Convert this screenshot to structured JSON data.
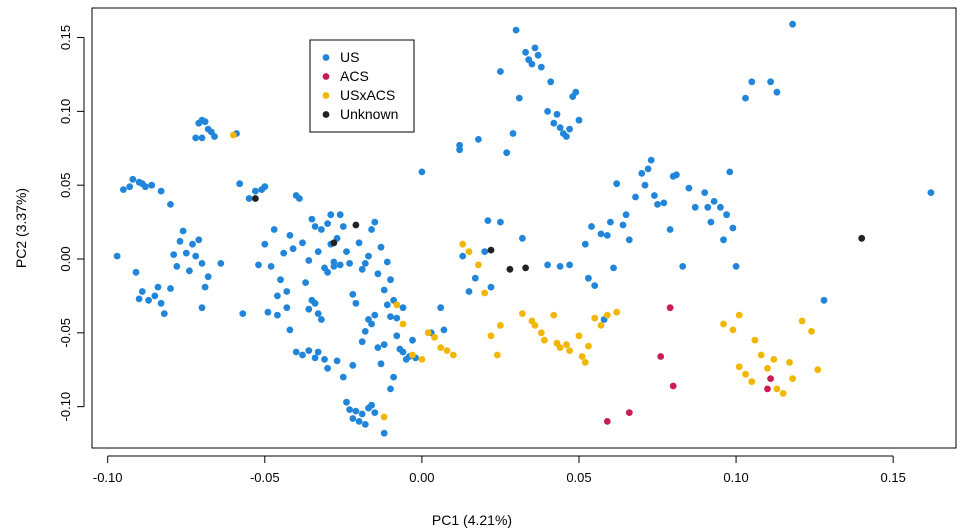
{
  "chart_data": {
    "type": "scatter",
    "xlabel": "PC1  (4.21%)",
    "ylabel": "PC2  (3.37%)",
    "xlim": [
      -0.105,
      0.17
    ],
    "ylim": [
      -0.128,
      0.17
    ],
    "xticks": [
      -0.1,
      -0.05,
      0.0,
      0.05,
      0.1,
      0.15
    ],
    "xtick_labels": [
      "-0.10",
      "-0.05",
      "0.00",
      "0.05",
      "0.10",
      "0.15"
    ],
    "yticks": [
      -0.1,
      -0.05,
      0.0,
      0.05,
      0.1,
      0.15
    ],
    "ytick_labels": [
      "-0.10",
      "-0.05",
      "0.00",
      "0.05",
      "0.10",
      "0.15"
    ],
    "grid": false,
    "legend_position": "top-left",
    "series": [
      {
        "name": "US",
        "color": "#2185DA",
        "points": [
          [
            -0.097,
            0.002
          ],
          [
            -0.095,
            0.047
          ],
          [
            -0.093,
            0.049
          ],
          [
            -0.092,
            0.054
          ],
          [
            -0.09,
            0.052
          ],
          [
            -0.089,
            0.051
          ],
          [
            -0.088,
            0.049
          ],
          [
            -0.086,
            0.05
          ],
          [
            -0.083,
            0.046
          ],
          [
            -0.08,
            0.037
          ],
          [
            -0.091,
            -0.009
          ],
          [
            -0.09,
            -0.027
          ],
          [
            -0.089,
            -0.022
          ],
          [
            -0.087,
            -0.028
          ],
          [
            -0.085,
            -0.025
          ],
          [
            -0.084,
            -0.019
          ],
          [
            -0.083,
            -0.03
          ],
          [
            -0.082,
            -0.037
          ],
          [
            -0.08,
            -0.02
          ],
          [
            -0.079,
            0.003
          ],
          [
            -0.078,
            -0.005
          ],
          [
            -0.077,
            0.012
          ],
          [
            -0.076,
            0.019
          ],
          [
            -0.075,
            0.004
          ],
          [
            -0.074,
            -0.008
          ],
          [
            -0.073,
            0.01
          ],
          [
            -0.072,
            0.002
          ],
          [
            -0.071,
            0.013
          ],
          [
            -0.07,
            -0.003
          ],
          [
            -0.069,
            -0.019
          ],
          [
            -0.07,
            -0.033
          ],
          [
            -0.068,
            -0.012
          ],
          [
            -0.072,
            0.082
          ],
          [
            -0.071,
            0.092
          ],
          [
            -0.07,
            0.094
          ],
          [
            -0.069,
            0.093
          ],
          [
            -0.068,
            0.088
          ],
          [
            -0.067,
            0.086
          ],
          [
            -0.066,
            0.083
          ],
          [
            -0.07,
            0.082
          ],
          [
            -0.059,
            0.085
          ],
          [
            -0.058,
            0.051
          ],
          [
            -0.055,
            0.041
          ],
          [
            -0.053,
            0.046
          ],
          [
            -0.051,
            0.047
          ],
          [
            -0.05,
            0.049
          ],
          [
            -0.052,
            -0.004
          ],
          [
            -0.05,
            0.01
          ],
          [
            -0.048,
            -0.005
          ],
          [
            -0.047,
            0.02
          ],
          [
            -0.046,
            -0.025
          ],
          [
            -0.045,
            -0.014
          ],
          [
            -0.044,
            0.004
          ],
          [
            -0.043,
            -0.022
          ],
          [
            -0.042,
            0.016
          ],
          [
            -0.041,
            0.007
          ],
          [
            -0.04,
            0.043
          ],
          [
            -0.039,
            0.041
          ],
          [
            -0.038,
            0.011
          ],
          [
            -0.037,
            -0.016
          ],
          [
            -0.036,
            -0.001
          ],
          [
            -0.035,
            0.027
          ],
          [
            -0.034,
            0.022
          ],
          [
            -0.033,
            0.005
          ],
          [
            -0.032,
            0.02
          ],
          [
            -0.031,
            -0.006
          ],
          [
            -0.03,
            0.024
          ],
          [
            -0.029,
            0.01
          ],
          [
            -0.028,
            -0.005
          ],
          [
            -0.027,
            0.014
          ],
          [
            -0.026,
            0.03
          ],
          [
            -0.025,
            0.022
          ],
          [
            -0.024,
            0.005
          ],
          [
            -0.023,
            -0.003
          ],
          [
            -0.022,
            -0.024
          ],
          [
            -0.021,
            -0.03
          ],
          [
            -0.02,
            0.011
          ],
          [
            -0.019,
            -0.007
          ],
          [
            -0.018,
            -0.003
          ],
          [
            -0.017,
            0.002
          ],
          [
            -0.016,
            0.02
          ],
          [
            -0.015,
            0.025
          ],
          [
            -0.014,
            -0.01
          ],
          [
            -0.013,
            0.008
          ],
          [
            -0.012,
            -0.021
          ],
          [
            -0.011,
            -0.002
          ],
          [
            -0.01,
            -0.014
          ],
          [
            -0.009,
            -0.028
          ],
          [
            -0.008,
            -0.052
          ],
          [
            -0.007,
            -0.061
          ],
          [
            -0.006,
            -0.063
          ],
          [
            -0.005,
            -0.068
          ],
          [
            -0.004,
            -0.066
          ],
          [
            -0.003,
            -0.055
          ],
          [
            -0.002,
            -0.067
          ],
          [
            -0.035,
            -0.028
          ],
          [
            -0.036,
            -0.034
          ],
          [
            -0.034,
            -0.03
          ],
          [
            -0.033,
            -0.037
          ],
          [
            -0.032,
            -0.041
          ],
          [
            -0.04,
            -0.063
          ],
          [
            -0.038,
            -0.065
          ],
          [
            -0.036,
            -0.062
          ],
          [
            -0.034,
            -0.067
          ],
          [
            -0.033,
            -0.063
          ],
          [
            -0.031,
            -0.068
          ],
          [
            -0.03,
            -0.074
          ],
          [
            -0.027,
            -0.069
          ],
          [
            -0.025,
            -0.08
          ],
          [
            -0.022,
            -0.072
          ],
          [
            -0.019,
            -0.056
          ],
          [
            -0.018,
            -0.049
          ],
          [
            -0.017,
            -0.041
          ],
          [
            -0.016,
            -0.044
          ],
          [
            -0.015,
            -0.038
          ],
          [
            -0.014,
            -0.06
          ],
          [
            -0.013,
            -0.071
          ],
          [
            -0.012,
            -0.058
          ],
          [
            -0.01,
            -0.039
          ],
          [
            -0.009,
            -0.08
          ],
          [
            -0.024,
            -0.097
          ],
          [
            -0.023,
            -0.102
          ],
          [
            -0.022,
            -0.108
          ],
          [
            -0.021,
            -0.103
          ],
          [
            -0.02,
            -0.11
          ],
          [
            -0.019,
            -0.105
          ],
          [
            -0.018,
            -0.112
          ],
          [
            -0.017,
            -0.101
          ],
          [
            -0.016,
            -0.099
          ],
          [
            -0.015,
            -0.104
          ],
          [
            -0.012,
            -0.118
          ],
          [
            -0.01,
            -0.088
          ],
          [
            -0.03,
            -0.009
          ],
          [
            -0.028,
            -0.002
          ],
          [
            -0.026,
            -0.004
          ],
          [
            -0.029,
            0.03
          ],
          [
            -0.046,
            -0.038
          ],
          [
            -0.049,
            -0.036
          ],
          [
            -0.043,
            -0.033
          ],
          [
            -0.042,
            -0.048
          ],
          [
            0.0,
            0.059
          ],
          [
            0.003,
            -0.05
          ],
          [
            0.006,
            -0.033
          ],
          [
            0.007,
            -0.048
          ],
          [
            0.012,
            0.077
          ],
          [
            0.012,
            0.074
          ],
          [
            0.013,
            0.002
          ],
          [
            0.015,
            -0.022
          ],
          [
            0.017,
            -0.013
          ],
          [
            0.018,
            0.081
          ],
          [
            0.02,
            0.005
          ],
          [
            0.021,
            0.026
          ],
          [
            0.022,
            -0.019
          ],
          [
            0.025,
            0.025
          ],
          [
            0.025,
            0.127
          ],
          [
            0.027,
            0.072
          ],
          [
            0.029,
            0.085
          ],
          [
            0.03,
            0.155
          ],
          [
            0.031,
            0.109
          ],
          [
            0.032,
            0.014
          ],
          [
            0.033,
            0.14
          ],
          [
            0.034,
            0.135
          ],
          [
            0.035,
            0.132
          ],
          [
            0.036,
            0.143
          ],
          [
            0.037,
            0.138
          ],
          [
            0.038,
            0.13
          ],
          [
            0.04,
            0.1
          ],
          [
            0.041,
            0.12
          ],
          [
            0.042,
            0.092
          ],
          [
            0.043,
            0.098
          ],
          [
            0.044,
            0.089
          ],
          [
            0.045,
            0.085
          ],
          [
            0.046,
            0.083
          ],
          [
            0.047,
            0.088
          ],
          [
            0.048,
            0.11
          ],
          [
            0.049,
            0.113
          ],
          [
            0.05,
            0.094
          ],
          [
            0.052,
            0.01
          ],
          [
            0.053,
            -0.013
          ],
          [
            0.054,
            0.022
          ],
          [
            0.055,
            -0.018
          ],
          [
            0.057,
            0.017
          ],
          [
            0.058,
            -0.041
          ],
          [
            0.059,
            0.016
          ],
          [
            0.06,
            0.025
          ],
          [
            0.061,
            -0.006
          ],
          [
            0.062,
            0.051
          ],
          [
            0.064,
            0.023
          ],
          [
            0.065,
            0.03
          ],
          [
            0.066,
            0.013
          ],
          [
            0.068,
            0.042
          ],
          [
            0.07,
            0.058
          ],
          [
            0.071,
            0.05
          ],
          [
            0.072,
            0.061
          ],
          [
            0.073,
            0.067
          ],
          [
            0.074,
            0.043
          ],
          [
            0.075,
            0.037
          ],
          [
            0.077,
            0.038
          ],
          [
            0.079,
            0.02
          ],
          [
            0.08,
            0.056
          ],
          [
            0.081,
            0.057
          ],
          [
            0.083,
            -0.005
          ],
          [
            0.085,
            0.048
          ],
          [
            0.087,
            0.035
          ],
          [
            0.09,
            0.045
          ],
          [
            0.091,
            0.035
          ],
          [
            0.092,
            0.025
          ],
          [
            0.093,
            0.039
          ],
          [
            0.095,
            0.035
          ],
          [
            0.096,
            0.013
          ],
          [
            0.097,
            0.03
          ],
          [
            0.098,
            0.059
          ],
          [
            0.099,
            0.021
          ],
          [
            0.1,
            -0.005
          ],
          [
            0.103,
            0.109
          ],
          [
            0.105,
            0.12
          ],
          [
            0.111,
            0.12
          ],
          [
            0.113,
            0.113
          ],
          [
            0.118,
            0.159
          ],
          [
            0.128,
            -0.028
          ],
          [
            0.162,
            0.045
          ],
          [
            -0.011,
            -0.031
          ],
          [
            -0.008,
            -0.04
          ],
          [
            -0.006,
            -0.033
          ],
          [
            0.04,
            -0.004
          ],
          [
            0.044,
            -0.005
          ],
          [
            0.047,
            -0.004
          ],
          [
            -0.064,
            -0.003
          ],
          [
            -0.057,
            -0.037
          ]
        ]
      },
      {
        "name": "ACS",
        "color": "#C91D5A",
        "points": [
          [
            0.059,
            -0.11
          ],
          [
            0.066,
            -0.104
          ],
          [
            0.076,
            -0.066
          ],
          [
            0.079,
            -0.033
          ],
          [
            0.08,
            -0.086
          ],
          [
            0.11,
            -0.088
          ],
          [
            0.111,
            -0.081
          ]
        ]
      },
      {
        "name": "USxACS",
        "color": "#F2B705",
        "points": [
          [
            -0.06,
            0.084
          ],
          [
            -0.012,
            -0.107
          ],
          [
            -0.008,
            -0.031
          ],
          [
            -0.006,
            -0.044
          ],
          [
            -0.003,
            -0.065
          ],
          [
            0.0,
            -0.068
          ],
          [
            0.002,
            -0.05
          ],
          [
            0.004,
            -0.053
          ],
          [
            0.006,
            -0.06
          ],
          [
            0.008,
            -0.062
          ],
          [
            0.01,
            -0.065
          ],
          [
            0.013,
            0.01
          ],
          [
            0.015,
            0.005
          ],
          [
            0.018,
            -0.004
          ],
          [
            0.02,
            -0.023
          ],
          [
            0.022,
            -0.052
          ],
          [
            0.024,
            -0.065
          ],
          [
            0.025,
            -0.045
          ],
          [
            0.032,
            -0.037
          ],
          [
            0.035,
            -0.042
          ],
          [
            0.036,
            -0.045
          ],
          [
            0.038,
            -0.05
          ],
          [
            0.039,
            -0.055
          ],
          [
            0.042,
            -0.038
          ],
          [
            0.043,
            -0.057
          ],
          [
            0.044,
            -0.06
          ],
          [
            0.046,
            -0.058
          ],
          [
            0.047,
            -0.062
          ],
          [
            0.05,
            -0.052
          ],
          [
            0.051,
            -0.066
          ],
          [
            0.052,
            -0.07
          ],
          [
            0.053,
            -0.059
          ],
          [
            0.055,
            -0.04
          ],
          [
            0.057,
            -0.045
          ],
          [
            0.059,
            -0.038
          ],
          [
            0.062,
            -0.036
          ],
          [
            0.101,
            -0.038
          ],
          [
            0.101,
            -0.073
          ],
          [
            0.103,
            -0.078
          ],
          [
            0.105,
            -0.083
          ],
          [
            0.106,
            -0.055
          ],
          [
            0.108,
            -0.065
          ],
          [
            0.11,
            -0.074
          ],
          [
            0.112,
            -0.068
          ],
          [
            0.113,
            -0.088
          ],
          [
            0.115,
            -0.091
          ],
          [
            0.117,
            -0.07
          ],
          [
            0.118,
            -0.081
          ],
          [
            0.121,
            -0.042
          ],
          [
            0.124,
            -0.049
          ],
          [
            0.096,
            -0.044
          ],
          [
            0.099,
            -0.048
          ],
          [
            0.126,
            -0.075
          ]
        ]
      },
      {
        "name": "Unknown",
        "color": "#222222",
        "points": [
          [
            -0.053,
            0.041
          ],
          [
            -0.028,
            0.011
          ],
          [
            -0.021,
            0.023
          ],
          [
            0.022,
            0.006
          ],
          [
            0.028,
            -0.007
          ],
          [
            0.033,
            -0.006
          ],
          [
            0.14,
            0.014
          ]
        ]
      }
    ]
  }
}
